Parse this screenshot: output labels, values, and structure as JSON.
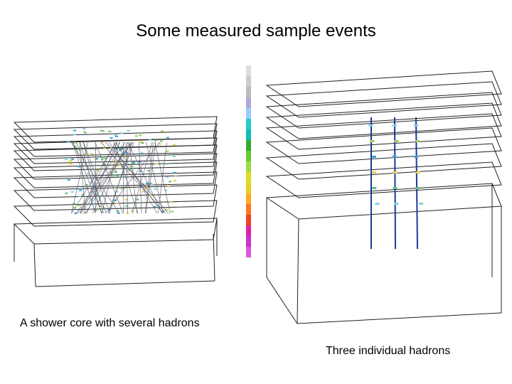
{
  "title": "Some measured sample events",
  "captions": {
    "left": "A shower core with several hadrons",
    "right": "Three individual hadrons"
  }
}
